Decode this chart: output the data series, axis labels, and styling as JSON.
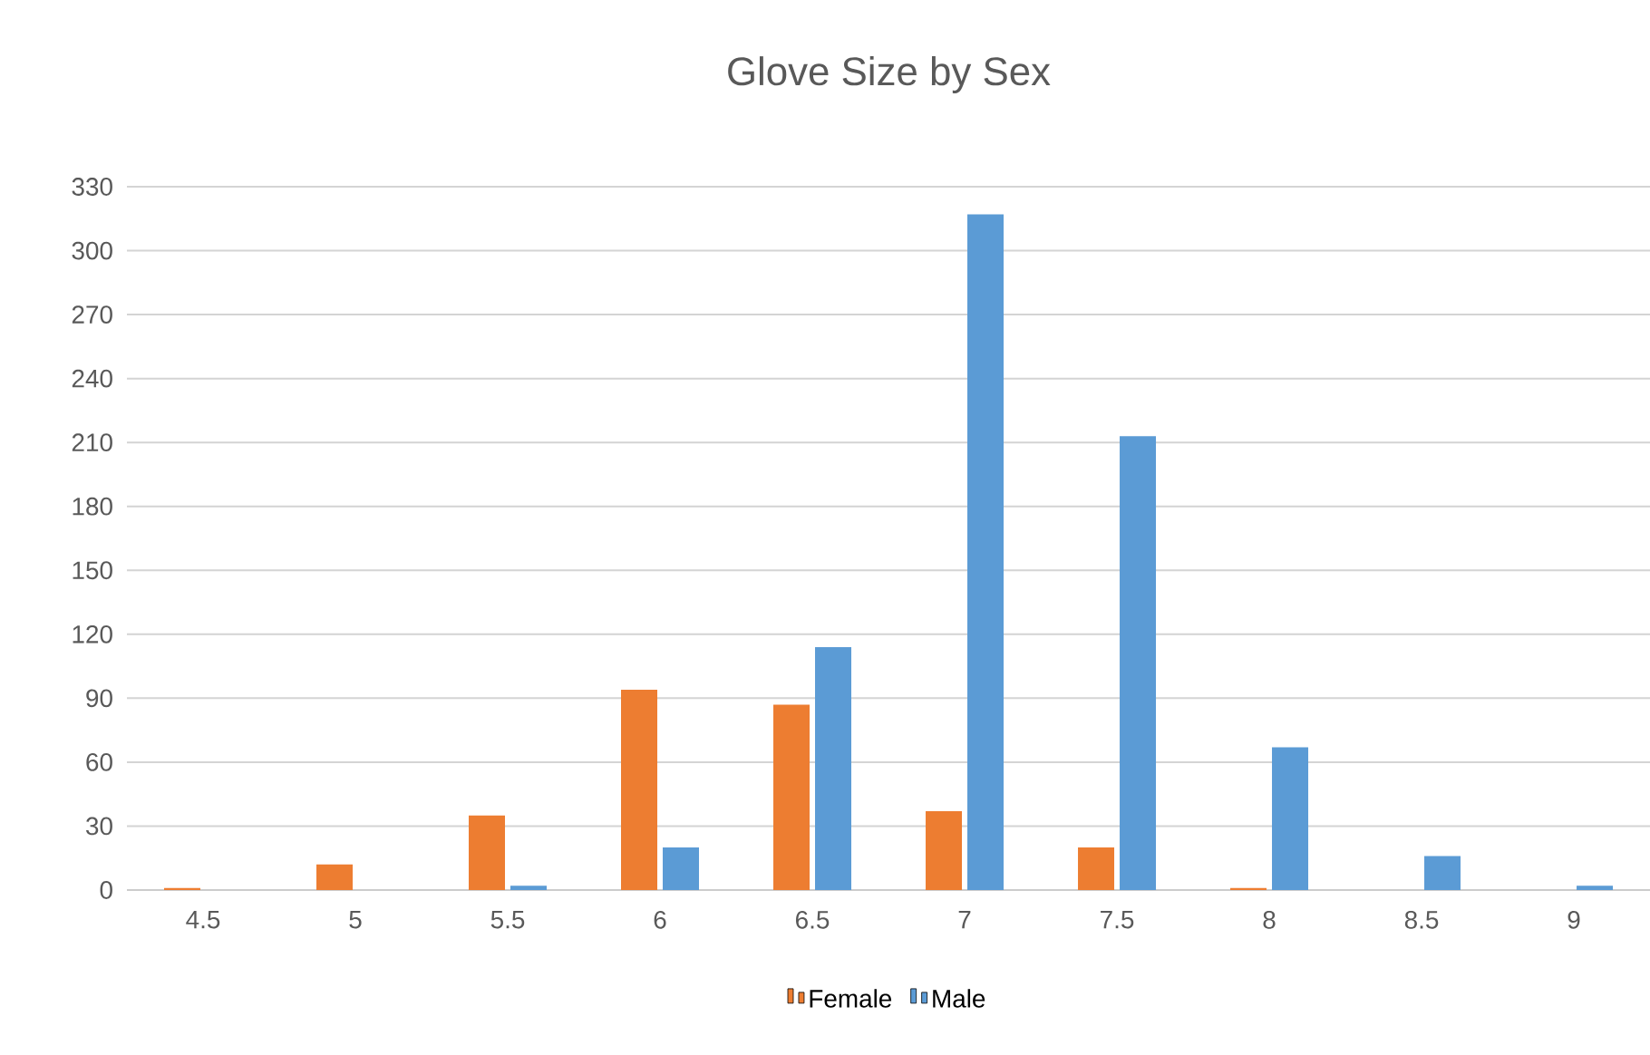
{
  "chart_data": {
    "type": "bar",
    "title": "Glove Size by Sex",
    "categories": [
      "4.5",
      "5",
      "5.5",
      "6",
      "6.5",
      "7",
      "7.5",
      "8",
      "8.5",
      "9"
    ],
    "series": [
      {
        "name": "Female",
        "color": "#ed7d31",
        "values": [
          1,
          12,
          35,
          94,
          87,
          37,
          20,
          1,
          0,
          0
        ]
      },
      {
        "name": "Male",
        "color": "#5b9bd5",
        "values": [
          0,
          0,
          2,
          20,
          114,
          317,
          213,
          67,
          16,
          2
        ]
      }
    ],
    "ylim": [
      0,
      330
    ],
    "yticks": [
      0,
      30,
      60,
      90,
      120,
      150,
      180,
      210,
      240,
      270,
      300,
      330
    ],
    "grid": "y",
    "legend": "bottom"
  }
}
